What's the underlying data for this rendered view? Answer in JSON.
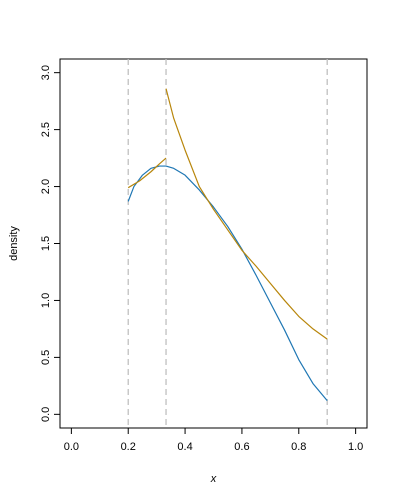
{
  "chart_data": {
    "type": "line",
    "xlabel": "x",
    "ylabel": "density",
    "xlim": [
      -0.04,
      1.04
    ],
    "ylim": [
      -0.12,
      3.12
    ],
    "xticks": [
      0.0,
      0.2,
      0.4,
      0.6,
      0.8,
      1.0
    ],
    "xtick_labels": [
      "0.0",
      "0.2",
      "0.4",
      "0.6",
      "0.8",
      "1.0"
    ],
    "yticks": [
      0.0,
      0.5,
      1.0,
      1.5,
      2.0,
      2.5,
      3.0
    ],
    "ytick_labels": [
      "0.0",
      "0.5",
      "1.0",
      "1.5",
      "2.0",
      "2.5",
      "3.0"
    ],
    "grid": false,
    "legend": "none",
    "vlines": {
      "x": [
        0.2,
        0.333,
        0.9
      ],
      "color": "#c0c0c0",
      "style": "dashed"
    },
    "series": [
      {
        "color": "#1f77b4",
        "segments": [
          {
            "x": [
              0.2,
              0.22,
              0.25,
              0.28,
              0.31,
              0.333,
              0.36,
              0.4,
              0.45,
              0.5,
              0.55,
              0.6,
              0.65,
              0.7,
              0.75,
              0.8,
              0.85,
              0.9
            ],
            "y": [
              1.87,
              2.0,
              2.1,
              2.16,
              2.18,
              2.18,
              2.16,
              2.1,
              1.97,
              1.82,
              1.65,
              1.45,
              1.22,
              0.98,
              0.74,
              0.48,
              0.27,
              0.12
            ]
          }
        ]
      },
      {
        "color": "#b8860b",
        "segments": [
          {
            "x": [
              0.2,
              0.24,
              0.28,
              0.31,
              0.333
            ],
            "y": [
              1.99,
              2.05,
              2.13,
              2.2,
              2.25
            ]
          },
          {
            "x": [
              0.333,
              0.36,
              0.4,
              0.45,
              0.5,
              0.55,
              0.6,
              0.65,
              0.7,
              0.75,
              0.8,
              0.85,
              0.9
            ],
            "y": [
              2.86,
              2.6,
              2.32,
              2.0,
              1.8,
              1.62,
              1.44,
              1.3,
              1.15,
              1.0,
              0.86,
              0.75,
              0.66
            ]
          }
        ]
      }
    ]
  }
}
